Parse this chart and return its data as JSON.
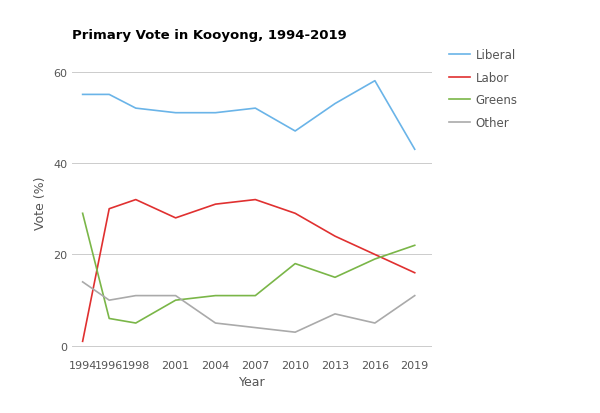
{
  "title": "Primary Vote in Kooyong, 1994-2019",
  "xlabel": "Year",
  "ylabel": "Vote (%)",
  "years": [
    1994,
    1996,
    1998,
    2001,
    2004,
    2007,
    2010,
    2013,
    2016,
    2019
  ],
  "liberal": [
    55,
    55,
    52,
    51,
    51,
    52,
    47,
    53,
    58,
    43
  ],
  "labor": [
    1,
    30,
    32,
    28,
    31,
    32,
    29,
    24,
    20,
    16
  ],
  "greens": [
    29,
    6,
    5,
    10,
    11,
    11,
    18,
    15,
    19,
    22
  ],
  "other": [
    14,
    10,
    11,
    11,
    5,
    4,
    3,
    7,
    5,
    11
  ],
  "liberal_color": "#6ab4e8",
  "labor_color": "#e03030",
  "greens_color": "#7ab648",
  "other_color": "#aaaaaa",
  "background_color": "#ffffff",
  "ylim": [
    -2,
    65
  ],
  "yticks": [
    0,
    20,
    40,
    60
  ],
  "title_fontsize": 9.5,
  "label_fontsize": 9,
  "tick_fontsize": 8,
  "legend_fontsize": 8.5
}
